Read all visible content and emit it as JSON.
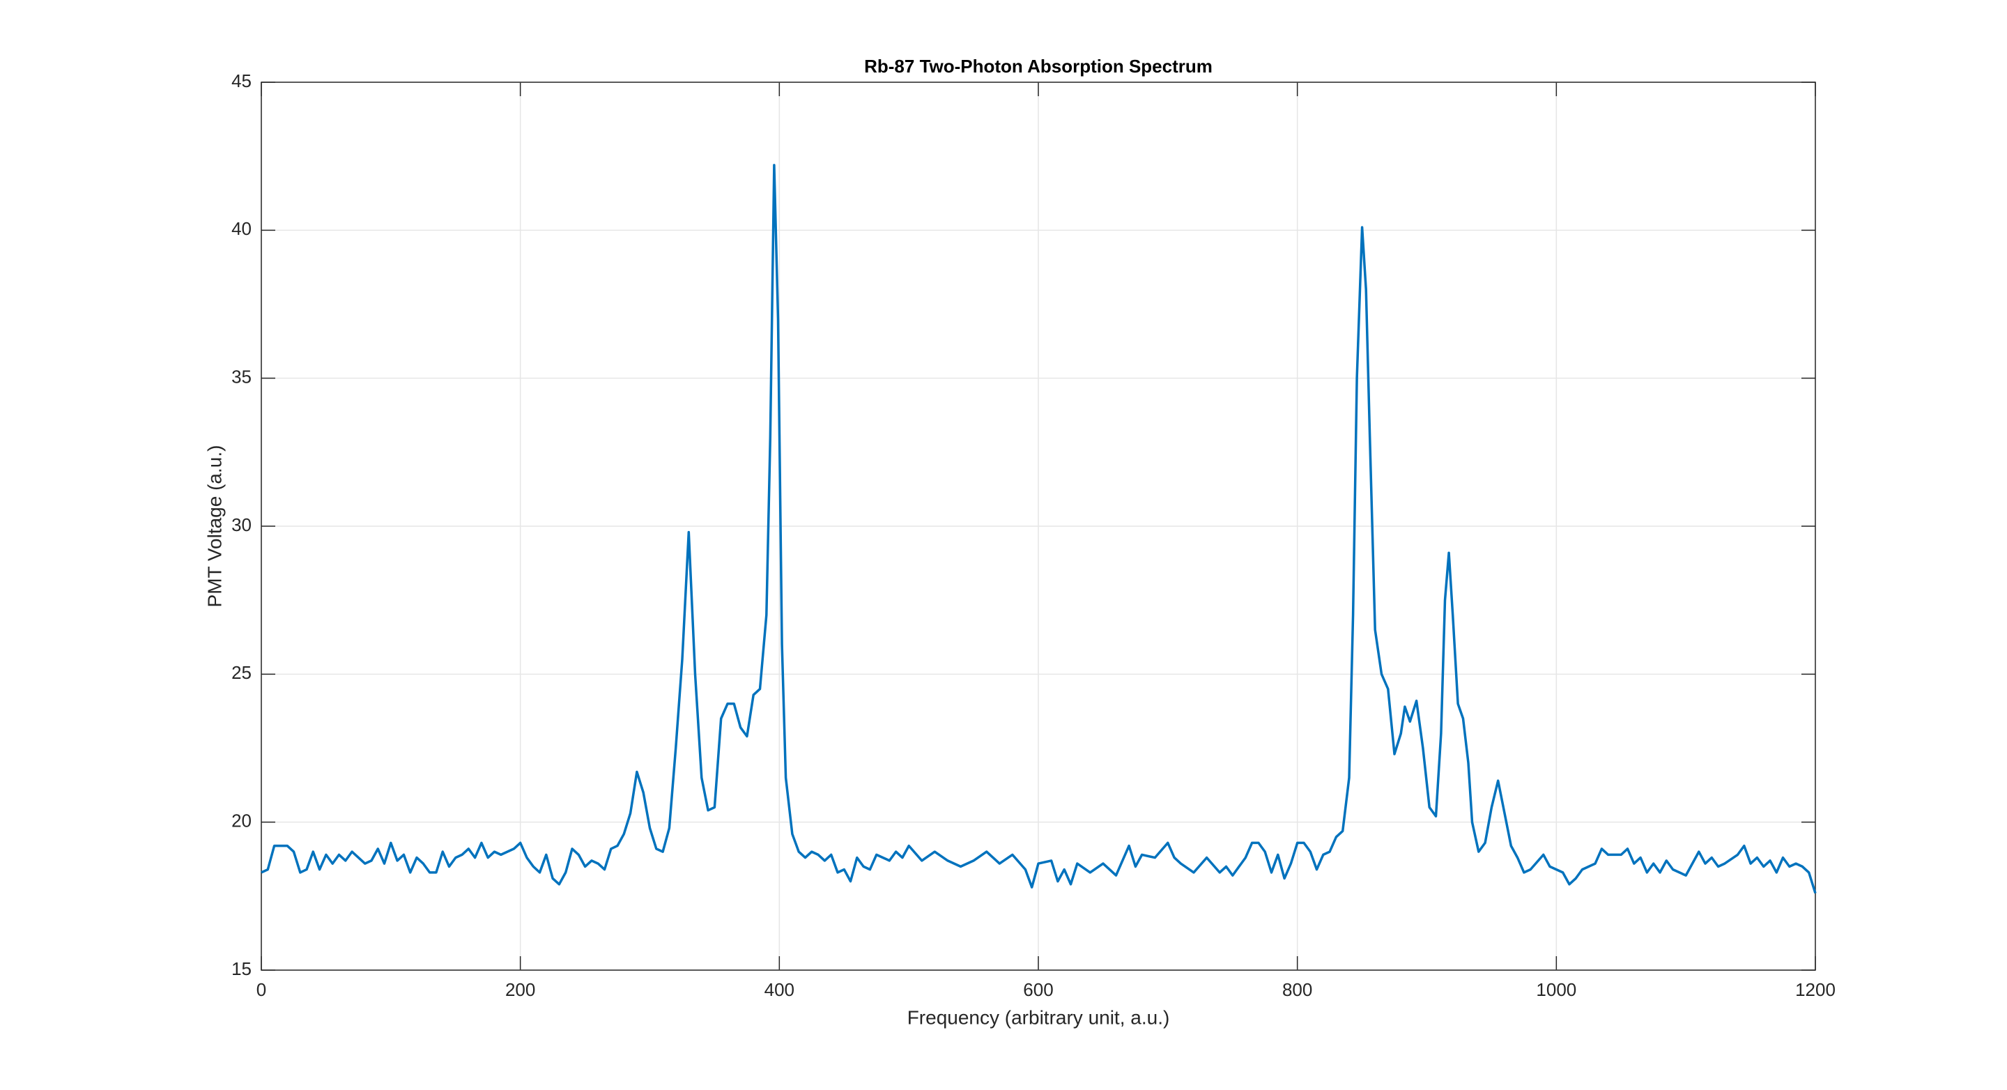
{
  "chart_data": {
    "type": "line",
    "title": "Rb-87 Two-Photon Absorption Spectrum",
    "xlabel": "Frequency (arbitrary unit, a.u.)",
    "ylabel": "PMT Voltage (a.u.)",
    "x": [
      0,
      5,
      10,
      20,
      25,
      30,
      35,
      40,
      45,
      50,
      55,
      60,
      65,
      70,
      75,
      80,
      85,
      90,
      95,
      100,
      105,
      110,
      115,
      120,
      125,
      130,
      135,
      140,
      145,
      150,
      155,
      160,
      165,
      170,
      175,
      180,
      185,
      190,
      195,
      200,
      205,
      210,
      215,
      220,
      225,
      230,
      235,
      240,
      245,
      250,
      255,
      260,
      265,
      270,
      275,
      280,
      285,
      290,
      295,
      300,
      305,
      310,
      315,
      320,
      325,
      330,
      335,
      340,
      345,
      350,
      355,
      360,
      365,
      370,
      375,
      380,
      385,
      390,
      393,
      396,
      399,
      402,
      405,
      410,
      415,
      420,
      425,
      430,
      435,
      440,
      445,
      450,
      455,
      460,
      465,
      470,
      475,
      480,
      485,
      490,
      495,
      500,
      510,
      520,
      530,
      540,
      550,
      560,
      570,
      580,
      590,
      595,
      600,
      610,
      615,
      620,
      625,
      630,
      640,
      650,
      660,
      670,
      675,
      680,
      690,
      700,
      705,
      710,
      720,
      730,
      740,
      745,
      750,
      760,
      765,
      770,
      775,
      780,
      785,
      790,
      795,
      800,
      805,
      810,
      815,
      820,
      825,
      830,
      835,
      840,
      843,
      846,
      850,
      853,
      856,
      860,
      865,
      870,
      875,
      880,
      883,
      887,
      892,
      897,
      902,
      907,
      911,
      914,
      917,
      920,
      924,
      928,
      932,
      935,
      940,
      945,
      950,
      955,
      960,
      965,
      970,
      975,
      980,
      990,
      995,
      1000,
      1005,
      1010,
      1015,
      1020,
      1030,
      1035,
      1040,
      1050,
      1055,
      1060,
      1065,
      1070,
      1075,
      1080,
      1085,
      1090,
      1100,
      1110,
      1115,
      1120,
      1125,
      1130,
      1140,
      1145,
      1150,
      1155,
      1160,
      1165,
      1170,
      1175,
      1180,
      1185,
      1190,
      1195,
      1200
    ],
    "series": [
      {
        "color": "#0072bd",
        "values": [
          18.3,
          18.4,
          19.2,
          19.2,
          19.0,
          18.3,
          18.4,
          19.0,
          18.4,
          18.9,
          18.6,
          18.9,
          18.7,
          19.0,
          18.8,
          18.6,
          18.7,
          19.1,
          18.6,
          19.3,
          18.7,
          18.9,
          18.3,
          18.8,
          18.6,
          18.3,
          18.3,
          19.0,
          18.5,
          18.8,
          18.9,
          19.1,
          18.8,
          19.3,
          18.8,
          19.0,
          18.9,
          19.0,
          19.1,
          19.3,
          18.8,
          18.5,
          18.3,
          18.9,
          18.1,
          17.9,
          18.3,
          19.1,
          18.9,
          18.5,
          18.7,
          18.6,
          18.4,
          19.1,
          19.2,
          19.6,
          20.3,
          21.7,
          21.0,
          19.8,
          19.1,
          19.0,
          19.8,
          22.5,
          25.5,
          29.8,
          25.0,
          21.5,
          20.4,
          20.5,
          23.5,
          24.0,
          24.0,
          23.2,
          22.9,
          24.3,
          24.5,
          27.0,
          33,
          42.2,
          37,
          26,
          21.5,
          19.6,
          19.0,
          18.8,
          19.0,
          18.9,
          18.7,
          18.9,
          18.3,
          18.4,
          18.0,
          18.8,
          18.5,
          18.4,
          18.9,
          18.8,
          18.7,
          19.0,
          18.8,
          19.2,
          18.7,
          19.0,
          18.7,
          18.5,
          18.7,
          19.0,
          18.6,
          18.9,
          18.4,
          17.8,
          18.6,
          18.7,
          18.0,
          18.4,
          17.9,
          18.6,
          18.3,
          18.6,
          18.2,
          19.2,
          18.5,
          18.9,
          18.8,
          19.3,
          18.8,
          18.6,
          18.3,
          18.8,
          18.3,
          18.5,
          18.2,
          18.8,
          19.3,
          19.3,
          19.0,
          18.3,
          18.9,
          18.1,
          18.6,
          19.3,
          19.3,
          19.0,
          18.4,
          18.9,
          19.0,
          19.5,
          19.7,
          21.5,
          27,
          35,
          40.1,
          38,
          33,
          26.5,
          25.0,
          24.5,
          22.3,
          23.0,
          23.9,
          23.4,
          24.1,
          22.5,
          20.5,
          20.2,
          23.0,
          27.5,
          29.1,
          27.0,
          24.0,
          23.5,
          22.0,
          20.0,
          19.0,
          19.3,
          20.5,
          21.4,
          20.3,
          19.2,
          18.8,
          18.3,
          18.4,
          18.9,
          18.5,
          18.4,
          18.3,
          17.9,
          18.1,
          18.4,
          18.6,
          19.1,
          18.9,
          18.9,
          19.1,
          18.6,
          18.8,
          18.3,
          18.6,
          18.3,
          18.7,
          18.4,
          18.2,
          19.0,
          18.6,
          18.8,
          18.5,
          18.6,
          18.9,
          19.2,
          18.6,
          18.8,
          18.5,
          18.7,
          18.3,
          18.8,
          18.5,
          18.6,
          18.5,
          18.3,
          17.6
        ]
      }
    ],
    "xlim": [
      0,
      1200
    ],
    "xticks": [
      0,
      200,
      400,
      600,
      800,
      1000,
      1200
    ],
    "ylim": [
      15,
      45
    ],
    "yticks": [
      15,
      20,
      25,
      30,
      35,
      40,
      45
    ],
    "grid": true
  }
}
